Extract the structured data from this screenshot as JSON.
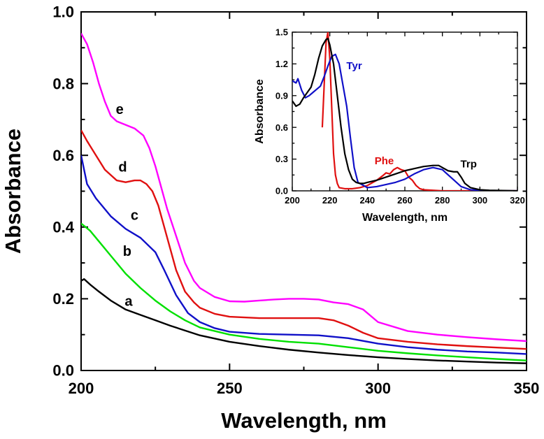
{
  "chart_data": [
    {
      "type": "line",
      "xlabel": "Wavelength, nm",
      "ylabel": "Absorbance",
      "xlim": [
        200,
        350
      ],
      "ylim": [
        0,
        1.0
      ],
      "xticks": [
        "200",
        "250",
        "300",
        "350"
      ],
      "yticks": [
        "0.0",
        "0.2",
        "0.4",
        "0.6",
        "0.8",
        "1.0"
      ],
      "series": [
        {
          "name": "a",
          "color": "#000000",
          "x": [
            200,
            201,
            203,
            206,
            210,
            215,
            220,
            225,
            230,
            240,
            250,
            260,
            270,
            280,
            290,
            300,
            310,
            320,
            330,
            340,
            350
          ],
          "y": [
            0.25,
            0.255,
            0.24,
            0.22,
            0.195,
            0.17,
            0.155,
            0.14,
            0.125,
            0.098,
            0.08,
            0.068,
            0.058,
            0.05,
            0.043,
            0.037,
            0.032,
            0.028,
            0.025,
            0.022,
            0.02
          ]
        },
        {
          "name": "b",
          "color": "#00e000",
          "x": [
            200,
            203,
            206,
            210,
            215,
            220,
            225,
            230,
            235,
            240,
            250,
            260,
            270,
            280,
            290,
            300,
            310,
            320,
            330,
            340,
            350
          ],
          "y": [
            0.41,
            0.39,
            0.36,
            0.32,
            0.27,
            0.23,
            0.195,
            0.165,
            0.14,
            0.12,
            0.1,
            0.088,
            0.08,
            0.075,
            0.065,
            0.055,
            0.048,
            0.042,
            0.037,
            0.032,
            0.028
          ]
        },
        {
          "name": "c",
          "color": "#1010c8",
          "x": [
            200,
            202,
            205,
            210,
            215,
            220,
            225,
            228,
            232,
            236,
            240,
            245,
            250,
            260,
            270,
            280,
            290,
            300,
            310,
            320,
            330,
            340,
            350
          ],
          "y": [
            0.6,
            0.52,
            0.48,
            0.43,
            0.395,
            0.37,
            0.33,
            0.28,
            0.21,
            0.16,
            0.135,
            0.118,
            0.108,
            0.102,
            0.1,
            0.098,
            0.09,
            0.075,
            0.065,
            0.058,
            0.053,
            0.05,
            0.046
          ]
        },
        {
          "name": "d",
          "color": "#e01010",
          "x": [
            200,
            202,
            205,
            208,
            212,
            215,
            218,
            220,
            222,
            224,
            226,
            228,
            230,
            232,
            235,
            238,
            240,
            245,
            250,
            260,
            270,
            280,
            285,
            290,
            295,
            300,
            310,
            320,
            330,
            340,
            350
          ],
          "y": [
            0.67,
            0.64,
            0.6,
            0.56,
            0.53,
            0.525,
            0.53,
            0.53,
            0.52,
            0.5,
            0.46,
            0.4,
            0.34,
            0.28,
            0.22,
            0.19,
            0.175,
            0.158,
            0.15,
            0.146,
            0.146,
            0.146,
            0.14,
            0.125,
            0.105,
            0.09,
            0.08,
            0.073,
            0.068,
            0.064,
            0.06
          ]
        },
        {
          "name": "e",
          "color": "#ff00ff",
          "x": [
            200,
            202,
            204,
            206,
            208,
            210,
            212,
            215,
            218,
            221,
            223,
            225,
            227,
            229,
            231,
            233,
            235,
            238,
            240,
            245,
            250,
            255,
            260,
            265,
            270,
            275,
            280,
            285,
            290,
            295,
            300,
            310,
            320,
            330,
            340,
            350
          ],
          "y": [
            0.94,
            0.91,
            0.86,
            0.8,
            0.75,
            0.71,
            0.695,
            0.685,
            0.675,
            0.655,
            0.62,
            0.57,
            0.51,
            0.45,
            0.4,
            0.35,
            0.3,
            0.25,
            0.23,
            0.205,
            0.193,
            0.192,
            0.195,
            0.198,
            0.2,
            0.2,
            0.198,
            0.19,
            0.185,
            0.17,
            0.135,
            0.11,
            0.1,
            0.093,
            0.087,
            0.082
          ]
        }
      ]
    },
    {
      "type": "line",
      "inset": true,
      "xlabel": "Wavelength, nm",
      "ylabel": "Absorbance",
      "xlim": [
        200,
        320
      ],
      "ylim": [
        0,
        1.5
      ],
      "xticks": [
        "200",
        "220",
        "240",
        "260",
        "280",
        "300",
        "320"
      ],
      "yticks": [
        "0.0",
        "0.3",
        "0.6",
        "0.9",
        "1.2",
        "1.5"
      ],
      "series": [
        {
          "name": "Phe",
          "color": "#e01010",
          "x": [
            216,
            218,
            219,
            220,
            221,
            222,
            223,
            224,
            225,
            228,
            232,
            236,
            240,
            245,
            248,
            250,
            252,
            254,
            256,
            258,
            260,
            262,
            264,
            266,
            268,
            270,
            275,
            280,
            320
          ],
          "y": [
            0.6,
            1.4,
            1.5,
            1.25,
            0.8,
            0.35,
            0.15,
            0.07,
            0.03,
            0.02,
            0.02,
            0.03,
            0.05,
            0.1,
            0.14,
            0.17,
            0.16,
            0.2,
            0.22,
            0.2,
            0.19,
            0.13,
            0.1,
            0.05,
            0.02,
            0.01,
            0.005,
            0.0,
            0.0
          ]
        },
        {
          "name": "Tyr",
          "color": "#1010c8",
          "x": [
            200,
            202,
            203,
            205,
            207,
            209,
            211,
            213,
            215,
            217,
            219,
            221,
            223,
            225,
            227,
            229,
            231,
            233,
            235,
            240,
            245,
            250,
            255,
            260,
            265,
            270,
            275,
            280,
            285,
            290,
            295,
            300,
            310,
            320
          ],
          "y": [
            1.04,
            1.02,
            1.06,
            0.95,
            0.88,
            0.9,
            0.93,
            0.96,
            0.99,
            1.08,
            1.18,
            1.27,
            1.29,
            1.2,
            1.0,
            0.8,
            0.5,
            0.22,
            0.08,
            0.03,
            0.04,
            0.06,
            0.08,
            0.11,
            0.16,
            0.2,
            0.22,
            0.2,
            0.12,
            0.04,
            0.01,
            0.005,
            0.0,
            0.0
          ]
        },
        {
          "name": "Trp",
          "color": "#000000",
          "x": [
            200,
            202,
            204,
            206,
            208,
            210,
            212,
            214,
            216,
            218,
            219,
            220,
            222,
            224,
            226,
            228,
            230,
            232,
            234,
            236,
            238,
            240,
            245,
            250,
            255,
            260,
            265,
            270,
            275,
            278,
            280,
            283,
            286,
            288,
            290,
            292,
            295,
            300,
            305,
            320
          ],
          "y": [
            0.85,
            0.8,
            0.82,
            0.88,
            0.93,
            0.98,
            1.1,
            1.25,
            1.37,
            1.43,
            1.44,
            1.38,
            1.2,
            0.9,
            0.6,
            0.35,
            0.2,
            0.11,
            0.08,
            0.07,
            0.07,
            0.08,
            0.1,
            0.13,
            0.16,
            0.19,
            0.21,
            0.23,
            0.24,
            0.24,
            0.22,
            0.19,
            0.18,
            0.18,
            0.13,
            0.07,
            0.03,
            0.01,
            0.005,
            0.0
          ]
        }
      ]
    }
  ]
}
